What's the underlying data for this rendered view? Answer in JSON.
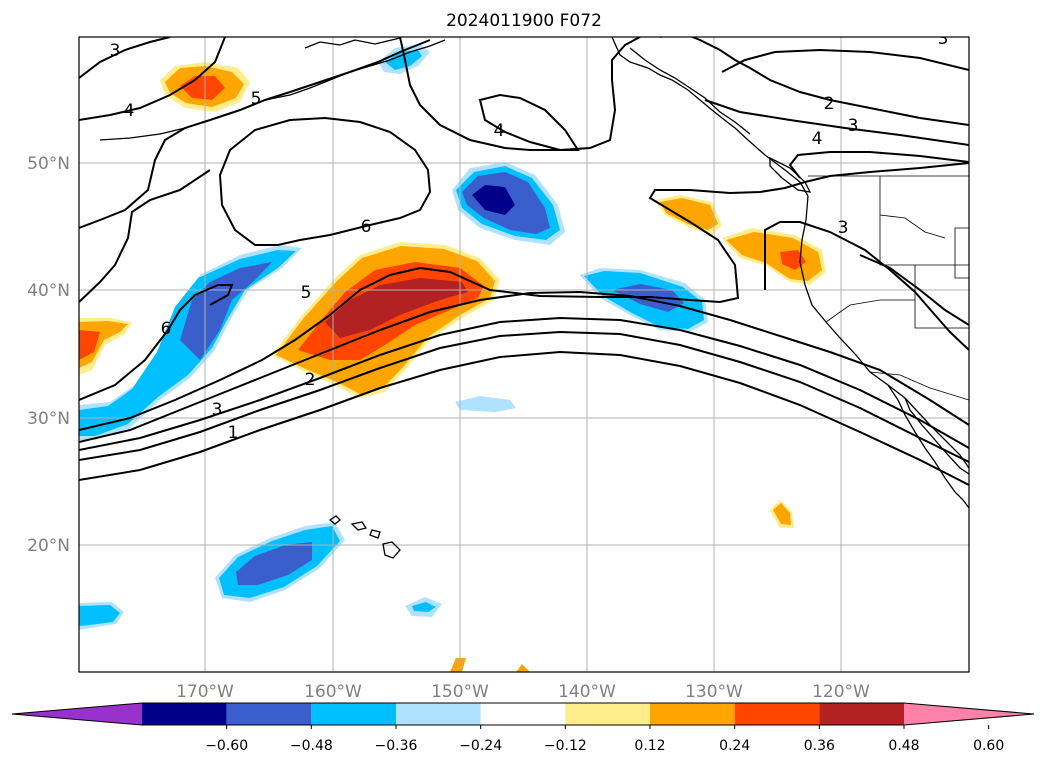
{
  "title": "2024011900 F072",
  "map": {
    "lon_ticks": [
      "170°W",
      "160°W",
      "150°W",
      "140°W",
      "130°W",
      "120°W"
    ],
    "lat_ticks": [
      "50°N",
      "40°N",
      "30°N",
      "20°N"
    ],
    "grid": true
  },
  "contour_labels": [
    "3",
    "4",
    "5",
    "4",
    "6",
    "6",
    "5",
    "2",
    "3",
    "1",
    "2",
    "3",
    "4",
    "3",
    "3"
  ],
  "colorbar": {
    "ticks": [
      "−0.60",
      "−0.48",
      "−0.36",
      "−0.24",
      "−0.12",
      "0.12",
      "0.24",
      "0.36",
      "0.48",
      "0.60"
    ],
    "colors": [
      "#9932cc",
      "#00008b",
      "#3a5fcd",
      "#00bfff",
      "#b0e2ff",
      "#ffffff",
      "#ffec8b",
      "#ffa500",
      "#ff4500",
      "#b22222",
      "#ff82ab"
    ]
  }
}
